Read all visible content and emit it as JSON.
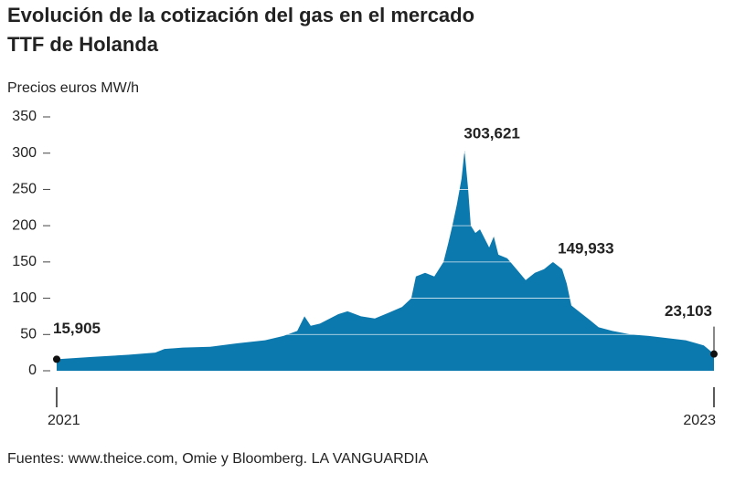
{
  "chart_data": {
    "type": "area",
    "title": [
      "Evolución de la cotización del gas en el mercado",
      "TTF de Holanda"
    ],
    "y_axis_label": "Precios euros MW/h",
    "source": "Fuentes: www.theice.com, Omie y Bloomberg. LA VANGUARDIA",
    "x": [
      2021.0,
      2021.106,
      2021.217,
      2021.3,
      2021.328,
      2021.384,
      2021.467,
      2021.551,
      2021.634,
      2021.662,
      2021.69,
      2021.732,
      2021.754,
      2021.773,
      2021.801,
      2021.857,
      2021.885,
      2021.926,
      2021.968,
      2022.01,
      2022.051,
      2022.079,
      2022.093,
      2022.121,
      2022.149,
      2022.177,
      2022.191,
      2022.204,
      2022.218,
      2022.232,
      2022.241,
      2022.252,
      2022.26,
      2022.274,
      2022.288,
      2022.316,
      2022.33,
      2022.344,
      2022.371,
      2022.399,
      2022.427,
      2022.455,
      2022.483,
      2022.51,
      2022.538,
      2022.552,
      2022.566,
      2022.594,
      2022.622,
      2022.649,
      2022.691,
      2022.747,
      2022.802,
      2022.858,
      2022.914,
      2022.969,
      2023.0
    ],
    "series": [
      {
        "name": "TTF",
        "color": "#0b78ae",
        "values": [
          15.905,
          19,
          22,
          25,
          30,
          32,
          33,
          38,
          42,
          45,
          48,
          55,
          75,
          62,
          65,
          78,
          82,
          75,
          72,
          80,
          88,
          100,
          130,
          135,
          130,
          150,
          175,
          200,
          230,
          265,
          303.621,
          250,
          200,
          190,
          195,
          170,
          185,
          160,
          155,
          140,
          125,
          135,
          140,
          149.933,
          140,
          120,
          90,
          80,
          70,
          60,
          55,
          50,
          48,
          45,
          42,
          35,
          23.103
        ]
      }
    ],
    "annotations": [
      {
        "x": 2021.0,
        "value": 15.905,
        "label": "15,905"
      },
      {
        "x": 2022.241,
        "value": 303.621,
        "label": "303,621"
      },
      {
        "x": 2022.51,
        "value": 149.933,
        "label": "149,933"
      },
      {
        "x": 2023.0,
        "value": 23.103,
        "label": "23,103"
      }
    ],
    "xlim": [
      2021,
      2023
    ],
    "xticks": [
      2021,
      2023
    ],
    "ylim": [
      0,
      350
    ],
    "yticks": [
      0,
      50,
      100,
      150,
      200,
      250,
      300,
      350
    ],
    "grid": true
  }
}
